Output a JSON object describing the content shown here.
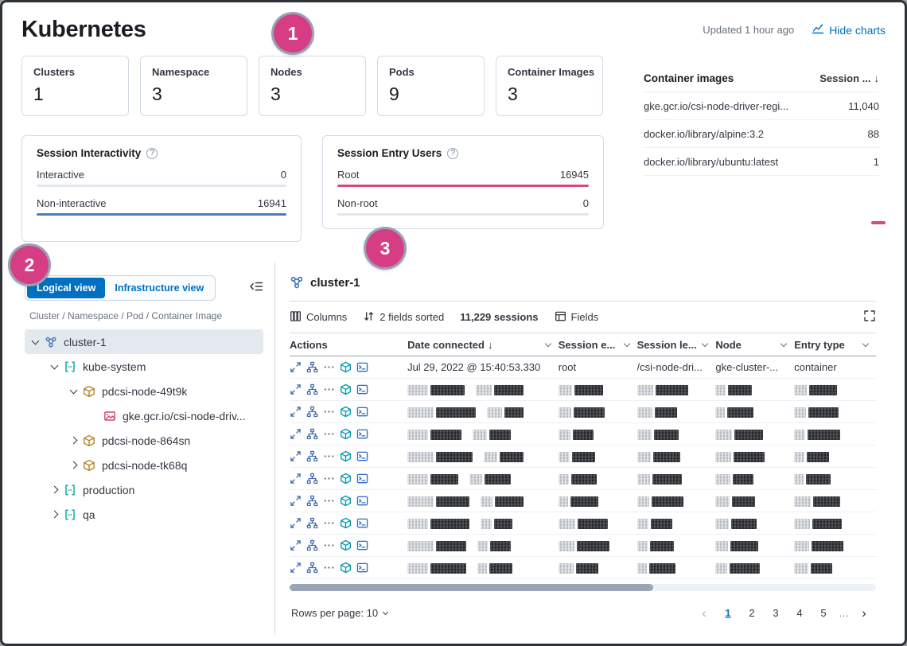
{
  "header": {
    "title": "Kubernetes",
    "updated": "Updated 1 hour ago",
    "hide_charts_label": "Hide charts"
  },
  "colors": {
    "primary_blue": "#0071c2",
    "callout_pink": "#d63d85",
    "bar_blue": "#4a7dbb",
    "bar_pink": "#d64a74"
  },
  "callouts": [
    {
      "label": "1"
    },
    {
      "label": "2"
    },
    {
      "label": "3"
    }
  ],
  "stat_cards": [
    {
      "label": "Clusters",
      "value": "1"
    },
    {
      "label": "Namespace",
      "value": "3"
    },
    {
      "label": "Nodes",
      "value": "3"
    },
    {
      "label": "Pods",
      "value": "9"
    },
    {
      "label": "Container Images",
      "value": "3"
    }
  ],
  "container_images": {
    "title": "Container images",
    "sort_header": "Session ...",
    "rows": [
      {
        "name": "gke.gcr.io/csi-node-driver-regi...",
        "sessions": "11,040"
      },
      {
        "name": "docker.io/library/alpine:3.2",
        "sessions": "88"
      },
      {
        "name": "docker.io/library/ubuntu:latest",
        "sessions": "1"
      }
    ]
  },
  "session_interactivity": {
    "title": "Session Interactivity",
    "rows": [
      {
        "label": "Interactive",
        "value": "0",
        "fill": 0,
        "color": "#4a7dbb"
      },
      {
        "label": "Non-interactive",
        "value": "16941",
        "fill": 100,
        "color": "#4a7dbb"
      }
    ]
  },
  "session_entry_users": {
    "title": "Session Entry Users",
    "rows": [
      {
        "label": "Root",
        "value": "16945",
        "fill": 100,
        "color": "#d64a74"
      },
      {
        "label": "Non-root",
        "value": "0",
        "fill": 0,
        "color": "#d64a74"
      }
    ]
  },
  "tree_panel": {
    "logical_view": "Logical view",
    "infrastructure_view": "Infrastructure view",
    "hierarchy_caption": "Cluster / Namespace / Pod / Container Image",
    "items": [
      {
        "label": "cluster-1",
        "depth": 0,
        "expander": "down",
        "icon": "cluster",
        "selected": true
      },
      {
        "label": "kube-system",
        "depth": 1,
        "expander": "down",
        "icon": "namespace",
        "selected": false
      },
      {
        "label": "pdcsi-node-49t9k",
        "depth": 2,
        "expander": "down",
        "icon": "pod",
        "selected": false
      },
      {
        "label": "gke.gcr.io/csi-node-driv...",
        "depth": 3,
        "expander": "none",
        "icon": "image",
        "selected": false
      },
      {
        "label": "pdcsi-node-864sn",
        "depth": 2,
        "expander": "right",
        "icon": "pod",
        "selected": false
      },
      {
        "label": "pdcsi-node-tk68q",
        "depth": 2,
        "expander": "right",
        "icon": "pod",
        "selected": false
      },
      {
        "label": "production",
        "depth": 1,
        "expander": "right",
        "icon": "namespace",
        "selected": false
      },
      {
        "label": "qa",
        "depth": 1,
        "expander": "right",
        "icon": "namespace",
        "selected": false
      }
    ]
  },
  "session_table": {
    "title": "cluster-1",
    "toolbar": {
      "columns": "Columns",
      "sorted": "2 fields sorted",
      "sessions": "11,229 sessions",
      "fields": "Fields"
    },
    "columns": [
      "Actions",
      "Date connected",
      "Session e...",
      "Session le...",
      "Node",
      "Entry type"
    ],
    "sorted_column_index": 1,
    "rows": [
      {
        "redacted": false,
        "date": "Jul 29, 2022 @ 15:40:53.330",
        "session_entry": "root",
        "session_leader": "/csi-node-dri...",
        "node": "gke-cluster-...",
        "entry_type": "container"
      },
      {
        "redacted": true
      },
      {
        "redacted": true
      },
      {
        "redacted": true
      },
      {
        "redacted": true
      },
      {
        "redacted": true
      },
      {
        "redacted": true
      },
      {
        "redacted": true
      },
      {
        "redacted": true
      },
      {
        "redacted": true
      }
    ],
    "rows_per_page": "Rows per page: 10",
    "pagination": {
      "prev": "‹",
      "pages": [
        "1",
        "2",
        "3",
        "4",
        "5"
      ],
      "current": "1",
      "ellipsis": "…",
      "next": "›"
    }
  }
}
